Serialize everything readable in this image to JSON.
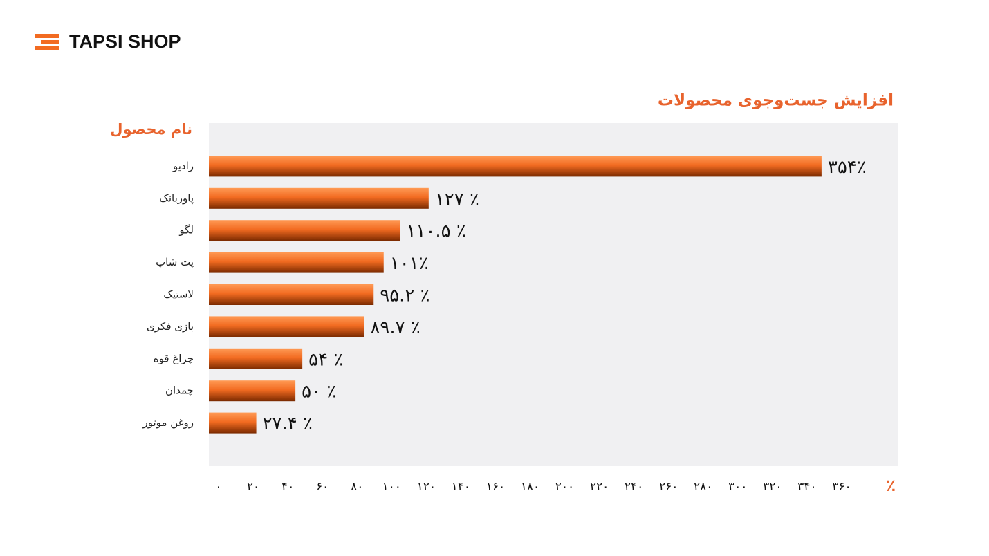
{
  "brand": "TAPSI SHOP",
  "chart_data": {
    "type": "bar",
    "orientation": "horizontal",
    "title": "افزایش جست‌وجوی محصولات",
    "y_label": "نام محصول",
    "x_label": "٪",
    "categories": [
      "رادیو",
      "پاوربانک",
      "لگو",
      "پت شاپ",
      "لاستیک",
      "بازی فکری",
      "چراغ قوه",
      "چمدان",
      "روغن موتور"
    ],
    "values": [
      354,
      127,
      110.5,
      101,
      95.2,
      89.7,
      54,
      50,
      27.4
    ],
    "value_labels": [
      "۳۵۴٪",
      "۱۲۷ ٪",
      "۱۱۰.۵ ٪",
      "۱۰۱٪",
      "۹۵.۲ ٪",
      "۸۹.۷ ٪",
      "۵۴ ٪",
      "۵۰ ٪",
      "۲۷.۴ ٪"
    ],
    "color": "#f26b21",
    "xlim": [
      0,
      398
    ],
    "xticks": [
      {
        "value": 0,
        "label": "۰"
      },
      {
        "value": 20,
        "label": "۲۰"
      },
      {
        "value": 40,
        "label": "۴۰"
      },
      {
        "value": 60,
        "label": "۶۰"
      },
      {
        "value": 80,
        "label": "۸۰"
      },
      {
        "value": 100,
        "label": "۱۰۰"
      },
      {
        "value": 120,
        "label": "۱۲۰"
      },
      {
        "value": 140,
        "label": "۱۴۰"
      },
      {
        "value": 160,
        "label": "۱۶۰"
      },
      {
        "value": 180,
        "label": "۱۸۰"
      },
      {
        "value": 200,
        "label": "۲۰۰"
      },
      {
        "value": 220,
        "label": "۲۲۰"
      },
      {
        "value": 240,
        "label": "۲۴۰"
      },
      {
        "value": 260,
        "label": "۲۶۰"
      },
      {
        "value": 280,
        "label": "۲۸۰"
      },
      {
        "value": 300,
        "label": "۳۰۰"
      },
      {
        "value": 320,
        "label": "۳۲۰"
      },
      {
        "value": 340,
        "label": "۳۴۰"
      },
      {
        "value": 360,
        "label": "۳۶۰"
      }
    ],
    "grid": false
  }
}
